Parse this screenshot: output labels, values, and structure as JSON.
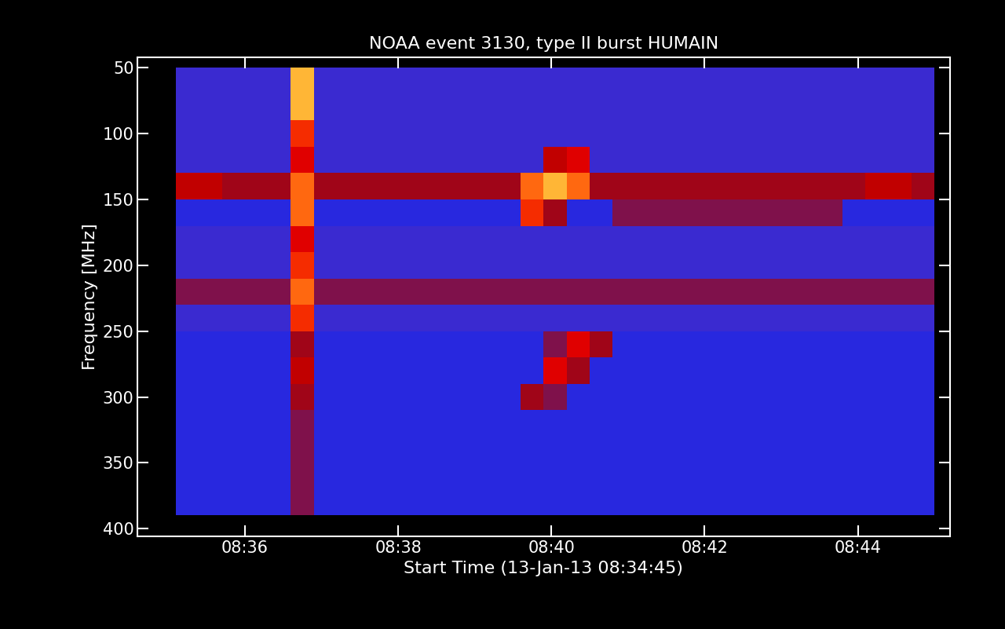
{
  "chart_data": {
    "type": "heatmap",
    "title": "NOAA event 3130, type II burst HUMAIN",
    "x_label": "Start Time (13-Jan-13 08:34:45)",
    "y_label": "Frequency [MHz]",
    "xlim": [
      34.6,
      45.2
    ],
    "ylim": [
      406,
      42
    ],
    "xticks": [
      {
        "value": 36,
        "label": "08:36"
      },
      {
        "value": 38,
        "label": "08:38"
      },
      {
        "value": 40,
        "label": "08:40"
      },
      {
        "value": 42,
        "label": "08:42"
      },
      {
        "value": 44,
        "label": "08:44"
      }
    ],
    "yticks": [
      50,
      100,
      150,
      200,
      250,
      300,
      350,
      400
    ],
    "time_edges": [
      35.1,
      35.4,
      35.7,
      36.0,
      36.3,
      36.6,
      36.9,
      37.2,
      37.5,
      37.8,
      38.1,
      38.4,
      38.7,
      39.0,
      39.3,
      39.6,
      39.9,
      40.2,
      40.5,
      40.8,
      41.1,
      41.4,
      41.7,
      42.0,
      42.3,
      42.6,
      42.9,
      43.2,
      43.5,
      43.8,
      44.1,
      44.4,
      44.7,
      45.0
    ],
    "frequency_edges": [
      50,
      70,
      90,
      110,
      130,
      150,
      170,
      190,
      210,
      230,
      250,
      270,
      290,
      310,
      330,
      350,
      370,
      390
    ],
    "zlim": [
      0,
      10
    ],
    "cells": [
      [
        2,
        2,
        2,
        2,
        2,
        9,
        2,
        2,
        2,
        2,
        2,
        2,
        2,
        2,
        2,
        2,
        2,
        2,
        2,
        2,
        2,
        2,
        2,
        2,
        2,
        2,
        2,
        2,
        2,
        2,
        2,
        2,
        2
      ],
      [
        2,
        2,
        2,
        2,
        2,
        9,
        2,
        2,
        2,
        2,
        2,
        2,
        2,
        2,
        2,
        2,
        2,
        2,
        2,
        2,
        2,
        2,
        2,
        2,
        2,
        2,
        2,
        2,
        2,
        2,
        2,
        2,
        2
      ],
      [
        2,
        2,
        2,
        2,
        2,
        7,
        2,
        2,
        2,
        2,
        2,
        2,
        2,
        2,
        2,
        2,
        2,
        2,
        2,
        2,
        2,
        2,
        2,
        2,
        2,
        2,
        2,
        2,
        2,
        2,
        2,
        2,
        2
      ],
      [
        2,
        2,
        2,
        2,
        2,
        6,
        2,
        2,
        2,
        2,
        2,
        2,
        2,
        2,
        2,
        2,
        5,
        6,
        2,
        2,
        2,
        2,
        2,
        2,
        2,
        2,
        2,
        2,
        2,
        2,
        2,
        2,
        2
      ],
      [
        5,
        5,
        4,
        4,
        4,
        8,
        4,
        4,
        4,
        4,
        4,
        4,
        4,
        4,
        4,
        8,
        9,
        8,
        4,
        4,
        4,
        4,
        4,
        4,
        4,
        4,
        4,
        4,
        4,
        4,
        5,
        5,
        4
      ],
      [
        1,
        1,
        1,
        1,
        1,
        8,
        1,
        1,
        1,
        1,
        1,
        1,
        1,
        1,
        1,
        7,
        4,
        1,
        1,
        3,
        3,
        3,
        3,
        3,
        3,
        3,
        3,
        3,
        3,
        1,
        1,
        1,
        1
      ],
      [
        2,
        2,
        2,
        2,
        2,
        6,
        2,
        2,
        2,
        2,
        2,
        2,
        2,
        2,
        2,
        2,
        2,
        2,
        2,
        2,
        2,
        2,
        2,
        2,
        2,
        2,
        2,
        2,
        2,
        2,
        2,
        2,
        2
      ],
      [
        2,
        2,
        2,
        2,
        2,
        7,
        2,
        2,
        2,
        2,
        2,
        2,
        2,
        2,
        2,
        2,
        2,
        2,
        2,
        2,
        2,
        2,
        2,
        2,
        2,
        2,
        2,
        2,
        2,
        2,
        2,
        2,
        2
      ],
      [
        3,
        3,
        3,
        3,
        3,
        8,
        3,
        3,
        3,
        3,
        3,
        3,
        3,
        3,
        3,
        3,
        3,
        3,
        3,
        3,
        3,
        3,
        3,
        3,
        3,
        3,
        3,
        3,
        3,
        3,
        3,
        3,
        3
      ],
      [
        2,
        2,
        2,
        2,
        2,
        7,
        2,
        2,
        2,
        2,
        2,
        2,
        2,
        2,
        2,
        2,
        2,
        2,
        2,
        2,
        2,
        2,
        2,
        2,
        2,
        2,
        2,
        2,
        2,
        2,
        2,
        2,
        2
      ],
      [
        1,
        1,
        1,
        1,
        1,
        4,
        1,
        1,
        1,
        1,
        1,
        1,
        1,
        1,
        1,
        1,
        3,
        6,
        4,
        1,
        1,
        1,
        1,
        1,
        1,
        1,
        1,
        1,
        1,
        1,
        1,
        1,
        1
      ],
      [
        1,
        1,
        1,
        1,
        1,
        5,
        1,
        1,
        1,
        1,
        1,
        1,
        1,
        1,
        1,
        1,
        6,
        4,
        1,
        1,
        1,
        1,
        1,
        1,
        1,
        1,
        1,
        1,
        1,
        1,
        1,
        1,
        1
      ],
      [
        1,
        1,
        1,
        1,
        1,
        4,
        1,
        1,
        1,
        1,
        1,
        1,
        1,
        1,
        1,
        4,
        3,
        1,
        1,
        1,
        1,
        1,
        1,
        1,
        1,
        1,
        1,
        1,
        1,
        1,
        1,
        1,
        1
      ],
      [
        1,
        1,
        1,
        1,
        1,
        3,
        1,
        1,
        1,
        1,
        1,
        1,
        1,
        1,
        1,
        1,
        1,
        1,
        1,
        1,
        1,
        1,
        1,
        1,
        1,
        1,
        1,
        1,
        1,
        1,
        1,
        1,
        1
      ],
      [
        1,
        1,
        1,
        1,
        1,
        3,
        1,
        1,
        1,
        1,
        1,
        1,
        1,
        1,
        1,
        1,
        1,
        1,
        1,
        1,
        1,
        1,
        1,
        1,
        1,
        1,
        1,
        1,
        1,
        1,
        1,
        1,
        1
      ],
      [
        1,
        1,
        1,
        1,
        1,
        3,
        1,
        1,
        1,
        1,
        1,
        1,
        1,
        1,
        1,
        1,
        1,
        1,
        1,
        1,
        1,
        1,
        1,
        1,
        1,
        1,
        1,
        1,
        1,
        1,
        1,
        1,
        1
      ],
      [
        1,
        1,
        1,
        1,
        1,
        3,
        1,
        1,
        1,
        1,
        1,
        1,
        1,
        1,
        1,
        1,
        1,
        1,
        1,
        1,
        1,
        1,
        1,
        1,
        1,
        1,
        1,
        1,
        1,
        1,
        1,
        1,
        1
      ]
    ]
  }
}
